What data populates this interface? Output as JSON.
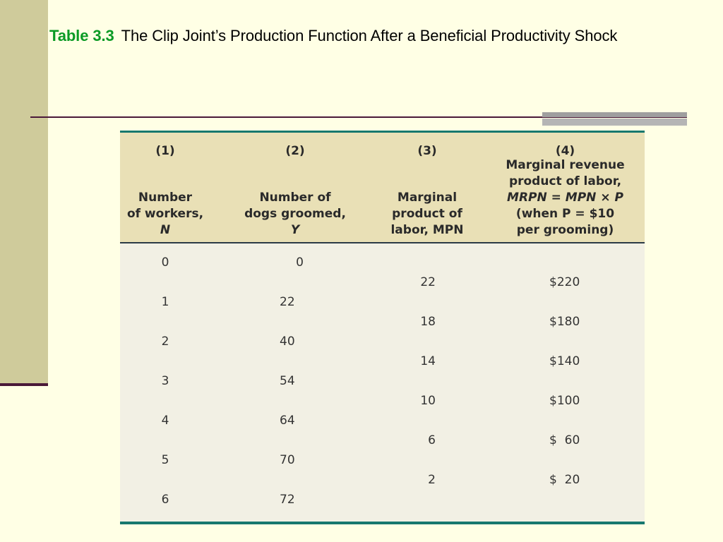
{
  "slide": {
    "title_label": "Table 3.3",
    "title_text": "The Clip Joint’s Production Function After a Beneficial Productivity Shock"
  },
  "colors": {
    "background": "#ffffe5",
    "sidebar": "#cfcb9b",
    "title_label": "#0a9a24",
    "rule": "#4a1838",
    "table_header_bg": "#e9e0b6",
    "table_body_bg": "#f2f0e4",
    "table_border": "#17786e"
  },
  "table": {
    "headers": [
      {
        "num": "(1)",
        "lines": [
          "Number",
          "of workers,",
          "N"
        ]
      },
      {
        "num": "(2)",
        "lines": [
          "Number of",
          "dogs groomed,",
          "Y"
        ]
      },
      {
        "num": "(3)",
        "lines": [
          "Marginal",
          "product of",
          "labor, MPN"
        ]
      },
      {
        "num": "(4)",
        "lines": [
          "Marginal revenue",
          "product of labor,",
          "MRPN = MPN × P",
          "(when P = $10",
          "per grooming)"
        ]
      }
    ],
    "workers": [
      "0",
      "1",
      "2",
      "3",
      "4",
      "5",
      "6"
    ],
    "output": [
      "0",
      "22",
      "40",
      "54",
      "64",
      "70",
      "72"
    ],
    "mpn": [
      "22",
      "18",
      "14",
      "10",
      "6",
      "2"
    ],
    "mrpn": [
      "$220",
      "$180",
      "$140",
      "$100",
      "$  60",
      "$  20"
    ]
  }
}
